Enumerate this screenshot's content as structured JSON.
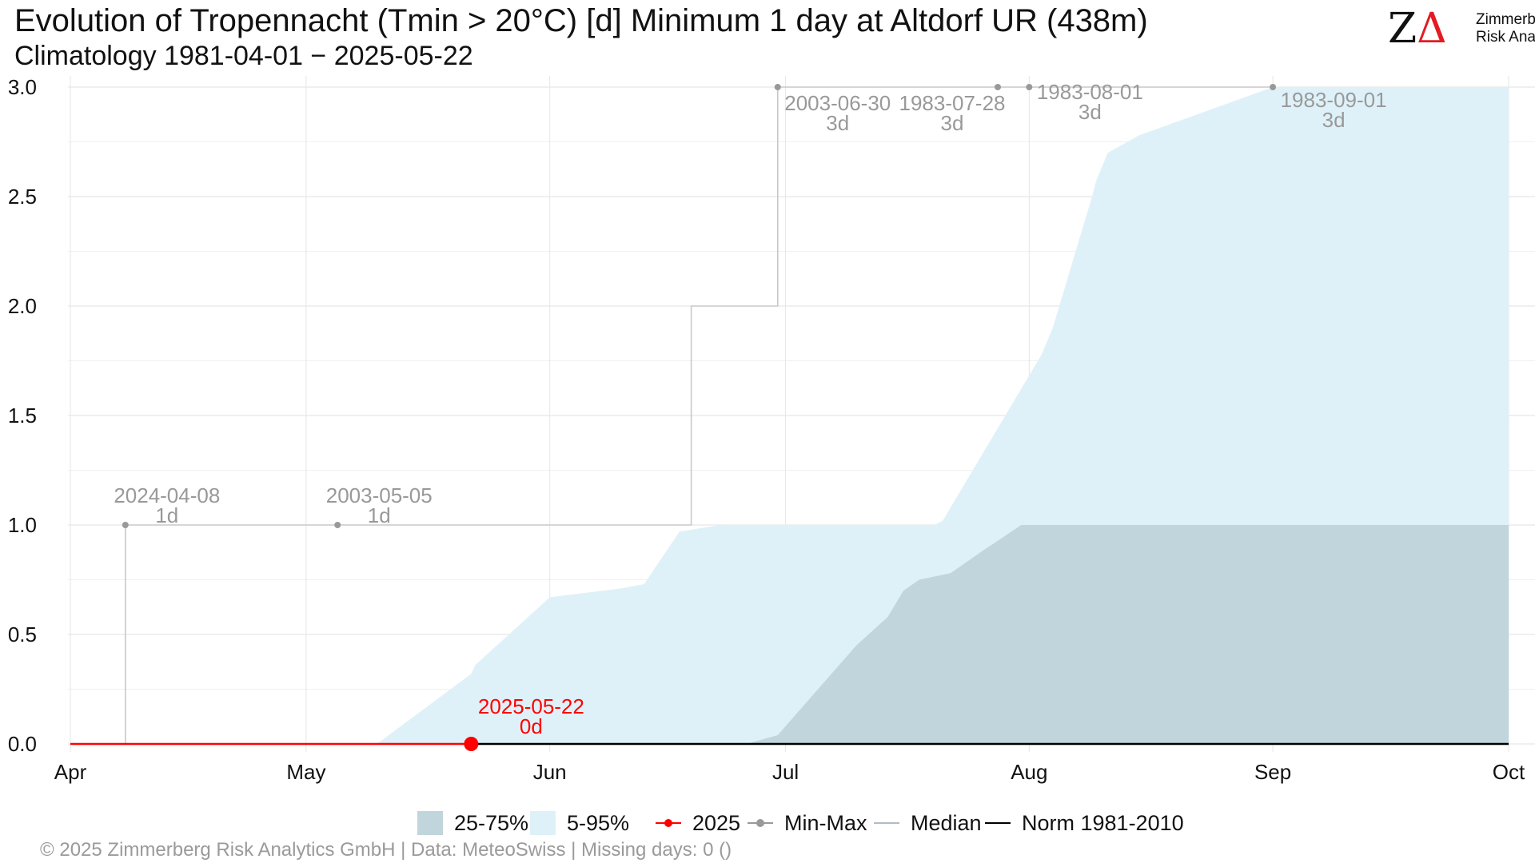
{
  "title": "Evolution of Tropennacht (Tmin > 20°C) [d] Minimum 1 day at Altdorf  UR (438m)",
  "subtitle": "Climatology 1981-04-01 − 2025-05-22",
  "logo": {
    "line1": "Zimmerberg",
    "line2": "Risk Analytics",
    "mark_z": "Z",
    "mark_delta": "Δ",
    "accent_color": "#e31b23"
  },
  "legend": {
    "items": [
      {
        "label": "25-75%",
        "color": "#c0d5dc",
        "kind": "box"
      },
      {
        "label": "5-95%",
        "color": "#dff1f8",
        "kind": "box"
      },
      {
        "label": "2025",
        "color": "#ff0000",
        "kind": "line-point"
      },
      {
        "label": "Min-Max",
        "color": "#999999",
        "kind": "line-point"
      },
      {
        "label": "Median",
        "color": "#b0bcc8",
        "kind": "line"
      },
      {
        "label": "Norm 1981-2010",
        "color": "#000000",
        "kind": "line"
      }
    ]
  },
  "footer": "©  2025 Zimmerberg Risk Analytics GmbH | Data: MeteoSwiss | Missing days: 0 ()",
  "chart_data": {
    "type": "area",
    "x_ticks": [
      "Apr",
      "May",
      "Jun",
      "Jul",
      "Aug",
      "Sep",
      "Oct"
    ],
    "y_ticks": [
      "0.0",
      "0.5",
      "1.0",
      "1.5",
      "2.0",
      "2.5",
      "3.0"
    ],
    "ylim": [
      0,
      3
    ],
    "xlim_days": [
      0,
      183
    ],
    "grid": true,
    "legend_position": "bottom",
    "colors": {
      "band_5_95": "#dff1f8",
      "band_25_75": "#c0d5dc",
      "current": "#ff0000",
      "minmax_line": "#c8c8c8",
      "minmax_point": "#999999",
      "norm": "#000000",
      "label_gray": "#999999"
    },
    "band_5_95": {
      "x": [
        0,
        39,
        51,
        51.5,
        61,
        70,
        73,
        77.5,
        81,
        83,
        90,
        100,
        110,
        111,
        123.6,
        125,
        130,
        130.5,
        132,
        136,
        153,
        183
      ],
      "lower": [
        0,
        0,
        0,
        0,
        0,
        0,
        0,
        0,
        0,
        0,
        0,
        0,
        0,
        0,
        0,
        0,
        0,
        0,
        0,
        0,
        0,
        0
      ],
      "upper": [
        0,
        0,
        0.32,
        0.36,
        0.67,
        0.71,
        0.73,
        0.97,
        0.99,
        1.0,
        1.0,
        1.0,
        1.0,
        1.02,
        1.78,
        1.9,
        2.5,
        2.57,
        2.7,
        2.78,
        3.0,
        3.0
      ]
    },
    "band_25_75": {
      "x": [
        0,
        86,
        90,
        100,
        104,
        106,
        108,
        112,
        116,
        121,
        183
      ],
      "lower": [
        0,
        0,
        0,
        0,
        0,
        0,
        0,
        0,
        0,
        0,
        0
      ],
      "upper": [
        0,
        0,
        0.04,
        0.45,
        0.58,
        0.7,
        0.75,
        0.78,
        0.88,
        1.0,
        1.0
      ]
    },
    "series_2025": {
      "name": "2025",
      "x": [
        0,
        51
      ],
      "y": [
        0,
        0
      ]
    },
    "norm": {
      "name": "Norm 1981-2010",
      "x": [
        51,
        183
      ],
      "y": [
        0,
        0
      ]
    },
    "minmax_step": {
      "x": [
        0,
        7,
        7,
        79,
        79,
        90,
        90,
        153
      ],
      "y": [
        0,
        0,
        1,
        1,
        2,
        2,
        3,
        3
      ]
    },
    "minmax_points": [
      {
        "x": 7,
        "y": 1
      },
      {
        "x": 34,
        "y": 1
      },
      {
        "x": 90,
        "y": 3
      },
      {
        "x": 118,
        "y": 3
      },
      {
        "x": 122,
        "y": 3
      },
      {
        "x": 153,
        "y": 3
      }
    ],
    "annotations": [
      {
        "date": "2024-04-08",
        "value": "1d",
        "x": 7,
        "y": 1
      },
      {
        "date": "2003-05-05",
        "value": "1d",
        "x": 34,
        "y": 1
      },
      {
        "date": "2003-06-30",
        "value": "3d",
        "x": 90,
        "y": 3
      },
      {
        "date": "1983-07-28",
        "value": "3d",
        "x": 118,
        "y": 3
      },
      {
        "date": "1983-08-01",
        "value": "3d",
        "x": 122,
        "y": 3
      },
      {
        "date": "1983-09-01",
        "value": "3d",
        "x": 153,
        "y": 3
      }
    ],
    "current_point": {
      "date": "2025-05-22",
      "value": "0d",
      "x": 51,
      "y": 0
    }
  }
}
